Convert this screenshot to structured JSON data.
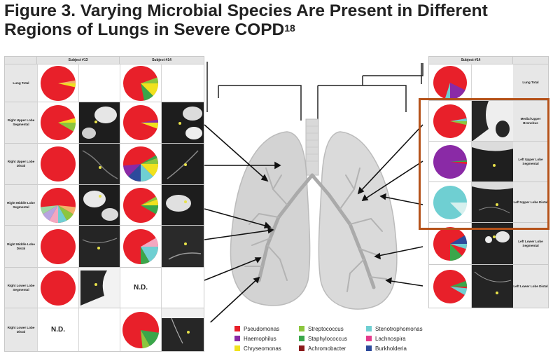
{
  "title_line1": "Figure 3. Varying Microbial Species Are Present in Different",
  "title_line2": "Regions of Lungs in Severe COPD",
  "title_ref": "18",
  "colors": {
    "pseudomonas": "#e8202a",
    "haemophilus": "#8a2aa6",
    "chryseomonas": "#f0e21e",
    "streptococcus": "#8cc63e",
    "staphylococcus": "#3aa64a",
    "achromobacter": "#8b1a1a",
    "stenotrophomonas": "#6fcfd2",
    "lachnospira": "#e43a8c",
    "burkholderia": "#2d4a9c",
    "orange_box": "#b5521a"
  },
  "left_table": {
    "subject13": "Subject #13",
    "subject14": "Subject #14",
    "rows": [
      "Lung Total",
      "Right Upper Lobe Segmental",
      "Right Upper Lobe Distal",
      "Right Middle Lobe Segmental",
      "Right Middle Lobe Distal",
      "Right Lower Lobe Segmental",
      "Right Lower Lobe Distal"
    ],
    "nd_s13": "N.D.",
    "nd_s14": "N.D."
  },
  "right_table": {
    "subject14": "Subject #14",
    "rows": [
      "Lung Total",
      "Medial Upper Bronchus",
      "Left Upper Lobe Segmental",
      "Left Upper Lobe Distal",
      "Left Lower Lobe Segmental",
      "Left Lower Lobe Distal"
    ]
  },
  "legend": [
    {
      "label": "Pseudomonas",
      "color": "#e8202a"
    },
    {
      "label": "Haemophilus",
      "color": "#8a2aa6"
    },
    {
      "label": "Chryseomonas",
      "color": "#f0e21e"
    },
    {
      "label": "Streptococcus",
      "color": "#8cc63e"
    },
    {
      "label": "Staphylococcus",
      "color": "#3aa64a"
    },
    {
      "label": "Achromobacter",
      "color": "#8b1a1a"
    },
    {
      "label": "Stenotrophomonas",
      "color": "#6fcfd2"
    },
    {
      "label": "Lachnospira",
      "color": "#e43a8c"
    },
    {
      "label": "Burkholderia",
      "color": "#2d4a9c"
    }
  ]
}
